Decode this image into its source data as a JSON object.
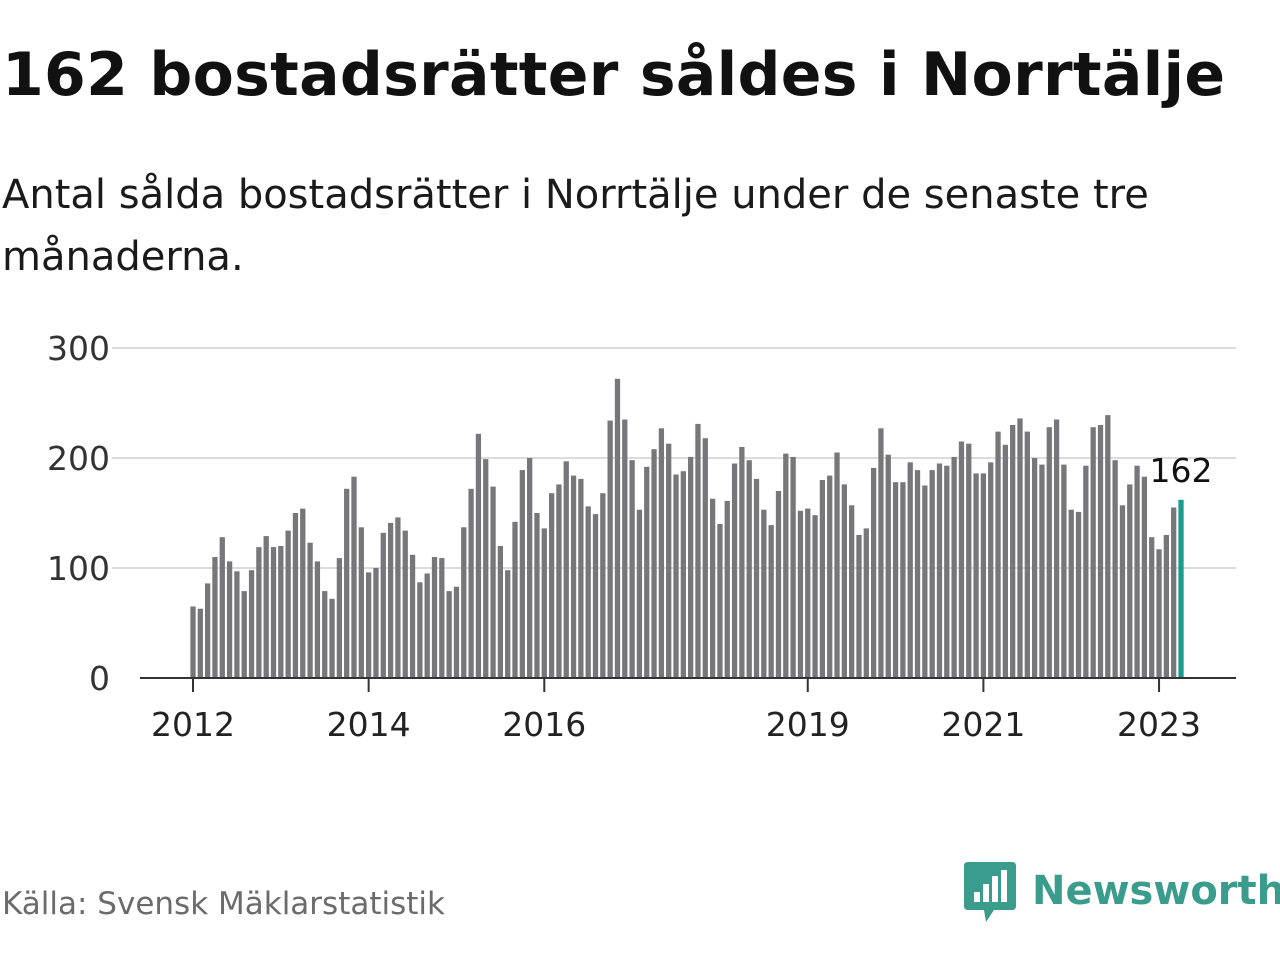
{
  "header": {
    "title": "162 bostadsrätter såldes i Norrtälje",
    "subtitle": "Antal sålda bostadsrätter i Norrtälje under de senaste tre månaderna."
  },
  "footer": {
    "source": "Källa: Svensk Mäklarstatistik",
    "brand": "Newsworthy"
  },
  "colors": {
    "bar": "#76767b",
    "highlight": "#1a9b8e",
    "grid": "#dcdcdc",
    "axis": "#333333",
    "brand": "#3a9c8c"
  },
  "chart_data": {
    "type": "bar",
    "title": "162 bostadsrätter såldes i Norrtälje",
    "xlabel": "",
    "ylabel": "",
    "ylim": [
      0,
      300
    ],
    "yticks": [
      0,
      100,
      200,
      300
    ],
    "yticklabels": [
      "0",
      "100",
      "200",
      "300"
    ],
    "grid": true,
    "x_ticks": [
      {
        "label": "2012",
        "index": 0
      },
      {
        "label": "2014",
        "index": 24
      },
      {
        "label": "2016",
        "index": 48
      },
      {
        "label": "2019",
        "index": 84
      },
      {
        "label": "2021",
        "index": 108
      },
      {
        "label": "2023",
        "index": 132
      }
    ],
    "highlight_label": "162",
    "series": [
      {
        "name": "Antal sålda bostadsrätter (rullande tre månader)",
        "values": [
          65,
          63,
          86,
          110,
          128,
          106,
          97,
          79,
          98,
          119,
          129,
          119,
          120,
          134,
          150,
          154,
          123,
          106,
          79,
          72,
          109,
          172,
          183,
          137,
          96,
          100,
          132,
          141,
          146,
          134,
          112,
          87,
          95,
          110,
          109,
          79,
          83,
          137,
          172,
          222,
          199,
          174,
          120,
          98,
          142,
          189,
          200,
          150,
          136,
          168,
          176,
          197,
          184,
          181,
          156,
          149,
          168,
          234,
          272,
          235,
          198,
          153,
          192,
          208,
          227,
          213,
          185,
          188,
          201,
          231,
          218,
          163,
          140,
          161,
          195,
          210,
          198,
          181,
          153,
          139,
          170,
          204,
          201,
          152,
          154,
          148,
          180,
          184,
          205,
          176,
          157,
          130,
          136,
          191,
          227,
          203,
          178,
          178,
          196,
          189,
          175,
          189,
          195,
          193,
          201,
          215,
          213,
          186,
          186,
          196,
          224,
          212,
          230,
          236,
          224,
          200,
          194,
          228,
          235,
          194,
          153,
          151,
          193,
          228,
          230,
          239,
          198,
          157,
          176,
          193,
          183,
          128,
          117,
          130,
          155,
          162
        ]
      }
    ]
  }
}
